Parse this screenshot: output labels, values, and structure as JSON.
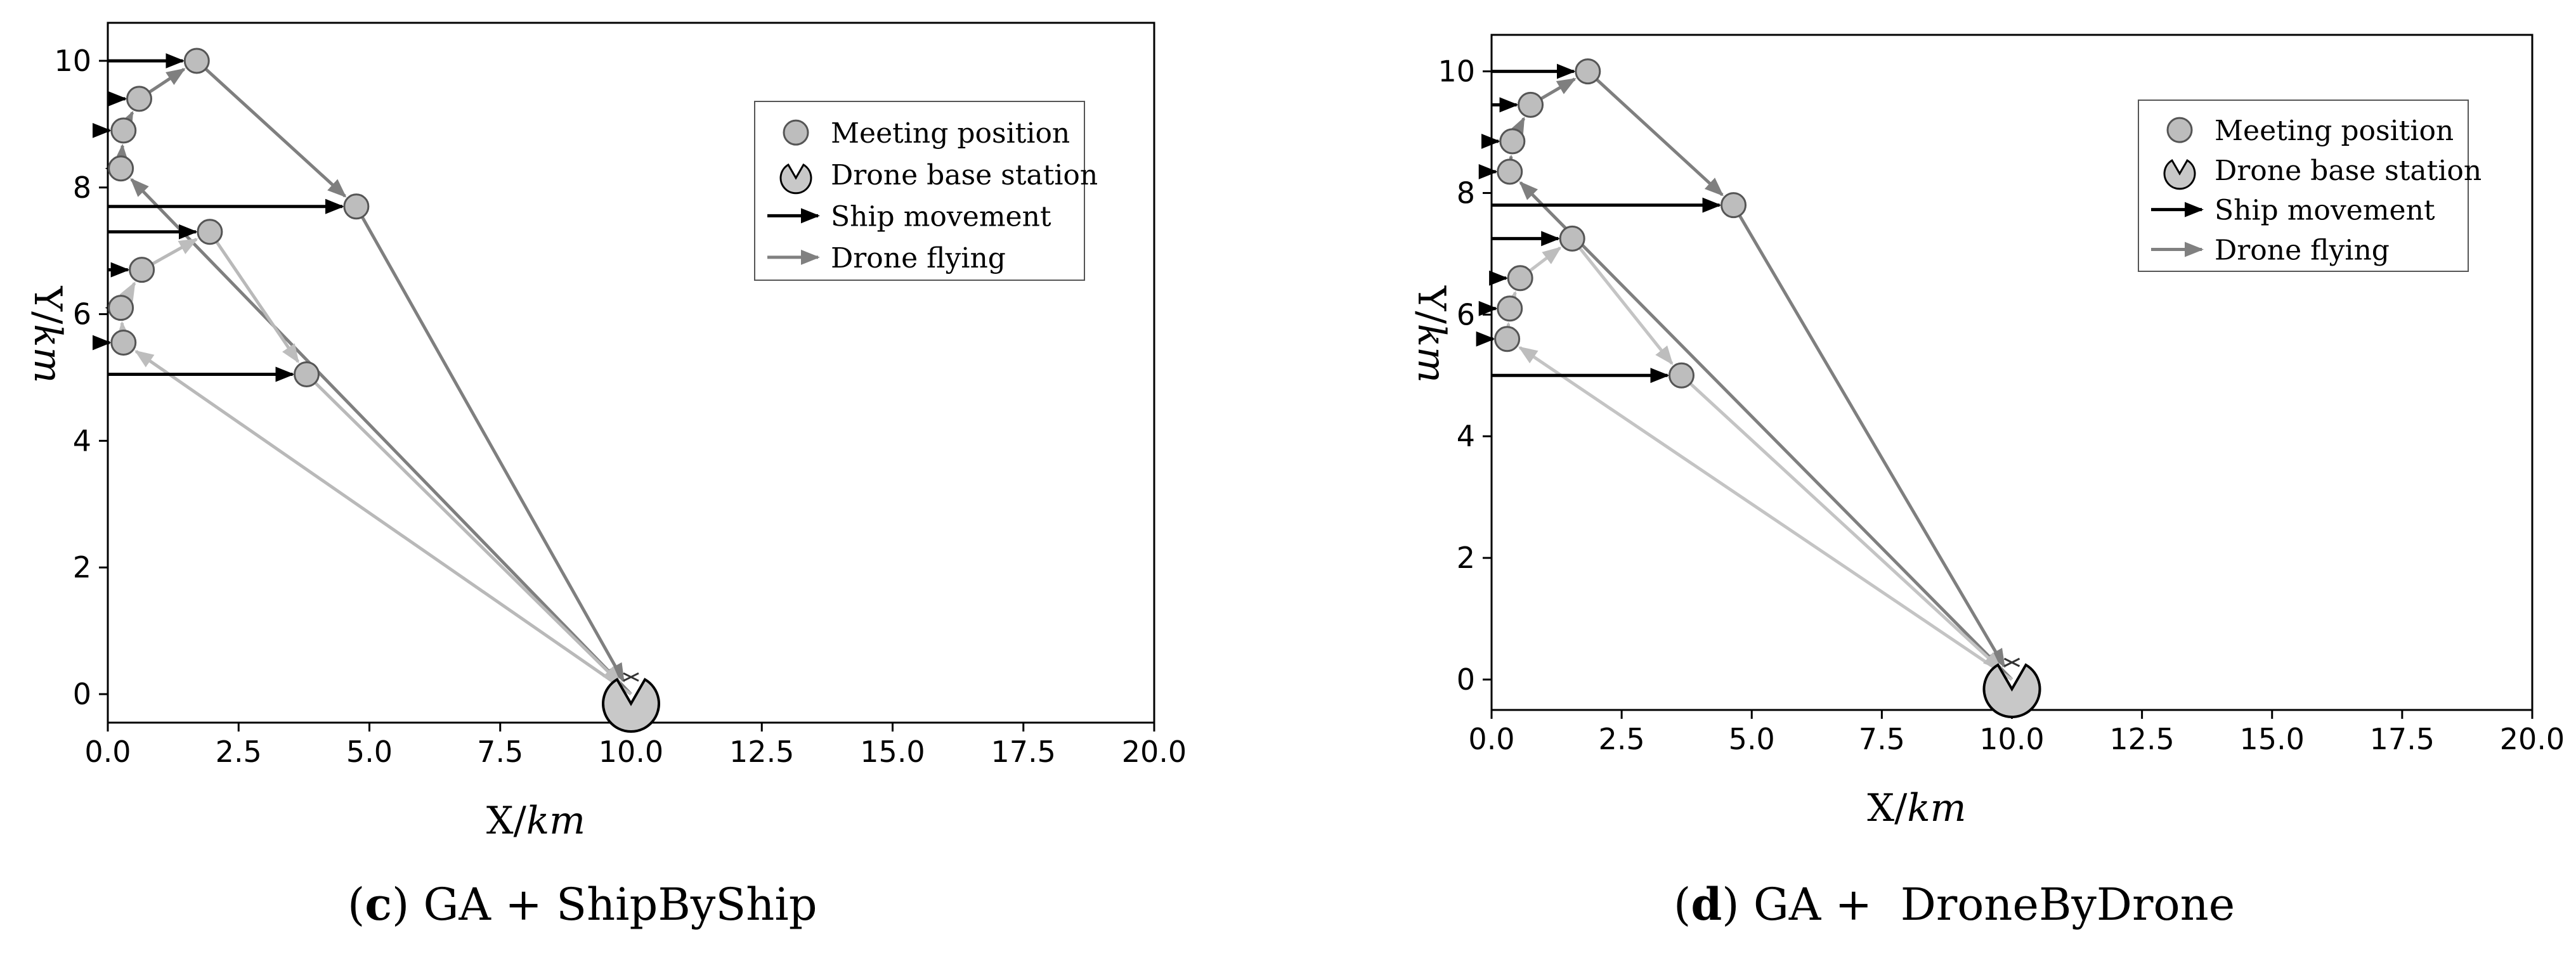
{
  "chart_data": [
    {
      "type": "scatter",
      "panel": "c",
      "caption": {
        "letter": "c",
        "open": "(",
        "close": ")",
        "text": " GA + ShipByShip"
      },
      "xlabel_prefix": "X/",
      "xlabel_unit": "km",
      "ylabel_prefix": "Y/",
      "ylabel_unit": "km",
      "xlim": [
        0,
        20
      ],
      "ylim": [
        -0.45,
        10.6
      ],
      "xticks": [
        "0.0",
        "2.5",
        "5.0",
        "7.5",
        "10.0",
        "12.5",
        "15.0",
        "17.5",
        "20.0"
      ],
      "xtick_values": [
        0,
        2.5,
        5,
        7.5,
        10,
        12.5,
        15,
        17.5,
        20
      ],
      "yticks": [
        "0",
        "2",
        "4",
        "6",
        "8",
        "10"
      ],
      "ytick_values": [
        0,
        2,
        4,
        6,
        8,
        10
      ],
      "grid": false,
      "legend": {
        "position": "top-right",
        "entries": [
          "Meeting position",
          "Drone base station",
          "Ship movement",
          "Drone flying"
        ]
      },
      "base_station": {
        "x": 10.0,
        "y": 0.0
      },
      "meeting_points": [
        {
          "x": 1.7,
          "y": 10.0
        },
        {
          "x": 0.6,
          "y": 9.4
        },
        {
          "x": 0.3,
          "y": 8.9
        },
        {
          "x": 0.25,
          "y": 8.3
        },
        {
          "x": 4.75,
          "y": 7.7
        },
        {
          "x": 1.95,
          "y": 7.3
        },
        {
          "x": 0.65,
          "y": 6.7
        },
        {
          "x": 0.25,
          "y": 6.1
        },
        {
          "x": 0.3,
          "y": 5.55
        },
        {
          "x": 3.8,
          "y": 5.05
        }
      ],
      "ship_movements": [
        {
          "x0": 0,
          "x1": 1.7,
          "y": 10.0
        },
        {
          "x0": 0,
          "x1": 0.6,
          "y": 9.4
        },
        {
          "x0": 0,
          "x1": 0.3,
          "y": 8.9
        },
        {
          "x0": 0,
          "x1": 0.25,
          "y": 8.3
        },
        {
          "x0": 0,
          "x1": 4.75,
          "y": 7.7
        },
        {
          "x0": 0,
          "x1": 1.95,
          "y": 7.3
        },
        {
          "x0": 0,
          "x1": 0.65,
          "y": 6.7
        },
        {
          "x0": 0,
          "x1": 0.25,
          "y": 6.1
        },
        {
          "x0": 0,
          "x1": 0.3,
          "y": 5.55
        },
        {
          "x0": 0,
          "x1": 3.8,
          "y": 5.05
        }
      ],
      "drone_routes": [
        {
          "color": "#7f7f7f",
          "points": [
            [
              10.0,
              0.0
            ],
            [
              0.25,
              8.3
            ],
            [
              0.3,
              8.9
            ],
            [
              0.6,
              9.4
            ],
            [
              1.7,
              10.0
            ],
            [
              4.75,
              7.7
            ],
            [
              10.0,
              0.0
            ]
          ]
        },
        {
          "color": "#b9b9b9",
          "points": [
            [
              10.0,
              0.0
            ],
            [
              0.3,
              5.55
            ],
            [
              0.25,
              6.1
            ],
            [
              0.65,
              6.7
            ],
            [
              1.95,
              7.3
            ],
            [
              3.8,
              5.05
            ],
            [
              10.0,
              0.0
            ]
          ]
        }
      ]
    },
    {
      "type": "scatter",
      "panel": "d",
      "caption": {
        "letter": "d",
        "open": "(",
        "close": ")",
        "text": " GA +  DroneByDrone"
      },
      "xlabel_prefix": "X/",
      "xlabel_unit": "km",
      "ylabel_prefix": "Y/",
      "ylabel_unit": "km",
      "xlim": [
        0,
        20
      ],
      "ylim": [
        -0.5,
        10.6
      ],
      "xticks": [
        "0.0",
        "2.5",
        "5.0",
        "7.5",
        "10.0",
        "12.5",
        "15.0",
        "17.5",
        "20.0"
      ],
      "xtick_values": [
        0,
        2.5,
        5,
        7.5,
        10,
        12.5,
        15,
        17.5,
        20
      ],
      "yticks": [
        "0",
        "2",
        "4",
        "6",
        "8",
        "10"
      ],
      "ytick_values": [
        0,
        2,
        4,
        6,
        8,
        10
      ],
      "grid": false,
      "legend": {
        "position": "top-right",
        "entries": [
          "Meeting position",
          "Drone base station",
          "Ship movement",
          "Drone flying"
        ]
      },
      "base_station": {
        "x": 10.0,
        "y": 0.0
      },
      "meeting_points": [
        {
          "x": 1.85,
          "y": 10.0
        },
        {
          "x": 0.75,
          "y": 9.45
        },
        {
          "x": 0.4,
          "y": 8.85
        },
        {
          "x": 0.35,
          "y": 8.35
        },
        {
          "x": 4.65,
          "y": 7.8
        },
        {
          "x": 1.55,
          "y": 7.25
        },
        {
          "x": 0.55,
          "y": 6.6
        },
        {
          "x": 0.35,
          "y": 6.1
        },
        {
          "x": 0.3,
          "y": 5.6
        },
        {
          "x": 3.65,
          "y": 5.0
        }
      ],
      "ship_movements": [
        {
          "x0": 0,
          "x1": 1.85,
          "y": 10.0
        },
        {
          "x0": 0,
          "x1": 0.75,
          "y": 9.45
        },
        {
          "x0": 0,
          "x1": 0.4,
          "y": 8.85
        },
        {
          "x0": 0,
          "x1": 0.35,
          "y": 8.35
        },
        {
          "x0": 0,
          "x1": 4.65,
          "y": 7.8
        },
        {
          "x0": 0,
          "x1": 1.55,
          "y": 7.25
        },
        {
          "x0": 0,
          "x1": 0.55,
          "y": 6.6
        },
        {
          "x0": 0,
          "x1": 0.35,
          "y": 6.1
        },
        {
          "x0": 0,
          "x1": 0.3,
          "y": 5.6
        },
        {
          "x0": 0,
          "x1": 3.65,
          "y": 5.0
        }
      ],
      "drone_routes": [
        {
          "color": "#7f7f7f",
          "points": [
            [
              10.0,
              0.0
            ],
            [
              0.35,
              8.35
            ],
            [
              0.4,
              8.85
            ],
            [
              0.75,
              9.45
            ],
            [
              1.85,
              10.0
            ],
            [
              4.65,
              7.8
            ],
            [
              10.0,
              0.0
            ]
          ]
        },
        {
          "color": "#c4c4c4",
          "points": [
            [
              10.0,
              0.0
            ],
            [
              0.3,
              5.6
            ],
            [
              0.35,
              6.1
            ],
            [
              0.55,
              6.6
            ],
            [
              1.55,
              7.25
            ],
            [
              3.65,
              5.0
            ],
            [
              10.0,
              0.0
            ]
          ]
        }
      ]
    }
  ],
  "colors": {
    "ship_arrow": "#000000",
    "drone_arrow": "#808080",
    "meeting_fill": "#bdbdbd",
    "station_fill": "#c8c8c8"
  }
}
